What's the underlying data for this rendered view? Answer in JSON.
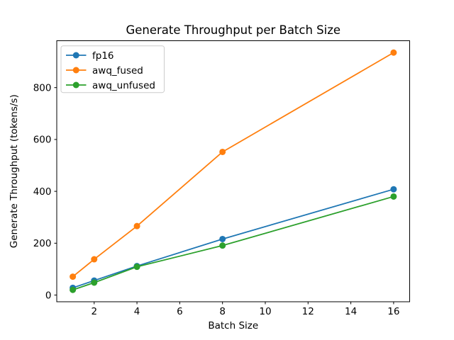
{
  "chart_data": {
    "type": "line",
    "title": "Generate Throughput per Batch Size",
    "xlabel": "Batch Size",
    "ylabel": "Generate Throughput (tokens/s)",
    "x": [
      1,
      2,
      4,
      8,
      16
    ],
    "series": [
      {
        "name": "fp16",
        "color": "#1f77b4",
        "values": [
          28,
          56,
          112,
          216,
          408
        ]
      },
      {
        "name": "awq_fused",
        "color": "#ff7f0e",
        "values": [
          71,
          138,
          266,
          552,
          935
        ]
      },
      {
        "name": "awq_unfused",
        "color": "#2ca02c",
        "values": [
          20,
          48,
          109,
          191,
          380
        ]
      }
    ],
    "xlim": [
      0.25,
      16.75
    ],
    "ylim": [
      -25.75,
      980.75
    ],
    "xticks": [
      2,
      4,
      6,
      8,
      10,
      12,
      14,
      16
    ],
    "yticks": [
      0,
      200,
      400,
      600,
      800
    ],
    "grid": false,
    "legend_position": "upper left",
    "marker": "o"
  },
  "colors": {
    "background": "#ffffff",
    "spine": "#000000",
    "tick": "#000000",
    "text": "#000000",
    "legend_border": "#cccccc",
    "legend_background": "#ffffff"
  }
}
